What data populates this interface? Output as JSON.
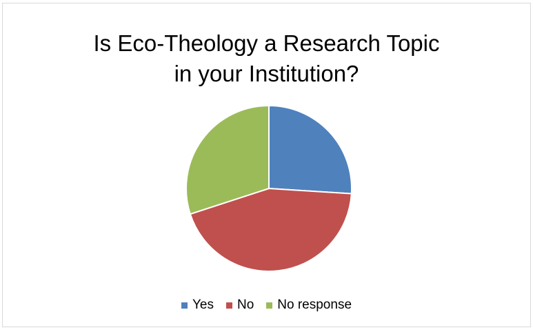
{
  "chart_data": {
    "type": "pie",
    "title_lines": [
      "Is Eco-Theology a Research Topic",
      "in your Institution?"
    ],
    "categories": [
      "Yes",
      "No",
      "No response"
    ],
    "values": [
      26,
      44,
      30
    ],
    "colors": [
      "#4f81bd",
      "#c0504d",
      "#9bbb59"
    ],
    "legend_position": "bottom"
  }
}
